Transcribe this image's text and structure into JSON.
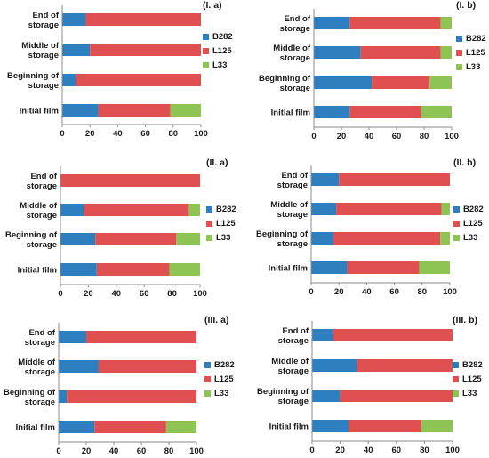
{
  "colors": {
    "B282": "#2E7FBF",
    "L125": "#E05050",
    "L33": "#8DC454",
    "axis": "#8a8a8a",
    "text": "#1a1a1a"
  },
  "chart_data": [
    {
      "type": "bar",
      "orientation": "horizontal",
      "stacked": true,
      "title": "(I. a)",
      "categories": [
        "Initial film",
        "Beginning of storage",
        "Middle of storage",
        "End of storage"
      ],
      "series": [
        {
          "name": "B282",
          "values": [
            26,
            10,
            20,
            17
          ]
        },
        {
          "name": "L125",
          "values": [
            52,
            90,
            80,
            83
          ]
        },
        {
          "name": "L33",
          "values": [
            22,
            0,
            0,
            0
          ]
        }
      ],
      "xlim": [
        0,
        100
      ],
      "xticks": [
        0,
        20,
        40,
        60,
        80,
        100
      ],
      "legend": "right"
    },
    {
      "type": "bar",
      "orientation": "horizontal",
      "stacked": true,
      "title": "(I. b)",
      "categories": [
        "Initial film",
        "Beginning of storage",
        "Middle of storage",
        "End of storage"
      ],
      "series": [
        {
          "name": "B282",
          "values": [
            26,
            42,
            34,
            26
          ]
        },
        {
          "name": "L125",
          "values": [
            52,
            42,
            58,
            66
          ]
        },
        {
          "name": "L33",
          "values": [
            22,
            16,
            8,
            8
          ]
        }
      ],
      "xlim": [
        0,
        100
      ],
      "xticks": [
        0,
        20,
        40,
        60,
        80,
        100
      ],
      "legend": "right"
    },
    {
      "type": "bar",
      "orientation": "horizontal",
      "stacked": true,
      "title": "(II. a)",
      "categories": [
        "Initial film",
        "Beginning of storage",
        "Middle of storage",
        "End of storage"
      ],
      "series": [
        {
          "name": "B282",
          "values": [
            26,
            25,
            17,
            0
          ]
        },
        {
          "name": "L125",
          "values": [
            52,
            58,
            75,
            100
          ]
        },
        {
          "name": "L33",
          "values": [
            22,
            17,
            8,
            0
          ]
        }
      ],
      "xlim": [
        0,
        100
      ],
      "xticks": [
        0,
        20,
        40,
        60,
        80,
        100
      ],
      "legend": "right"
    },
    {
      "type": "bar",
      "orientation": "horizontal",
      "stacked": true,
      "title": "(II. b)",
      "categories": [
        "Initial film",
        "Beginning of storage",
        "Middle of storage",
        "End of storage"
      ],
      "series": [
        {
          "name": "B282",
          "values": [
            26,
            16,
            18,
            20
          ]
        },
        {
          "name": "L125",
          "values": [
            52,
            77,
            76,
            80
          ]
        },
        {
          "name": "L33",
          "values": [
            22,
            7,
            6,
            0
          ]
        }
      ],
      "xlim": [
        0,
        100
      ],
      "xticks": [
        0,
        20,
        40,
        60,
        80,
        100
      ],
      "legend": "right"
    },
    {
      "type": "bar",
      "orientation": "horizontal",
      "stacked": true,
      "title": "(III. a)",
      "categories": [
        "Initial film",
        "Beginning of storage",
        "Middle of storage",
        "End of storage"
      ],
      "series": [
        {
          "name": "B282",
          "values": [
            26,
            6,
            29,
            20
          ]
        },
        {
          "name": "L125",
          "values": [
            52,
            94,
            71,
            80
          ]
        },
        {
          "name": "L33",
          "values": [
            22,
            0,
            0,
            0
          ]
        }
      ],
      "xlim": [
        0,
        100
      ],
      "xticks": [
        0,
        20,
        40,
        60,
        80,
        100
      ],
      "legend": "right"
    },
    {
      "type": "bar",
      "orientation": "horizontal",
      "stacked": true,
      "title": "(III. b)",
      "categories": [
        "Initial film",
        "Beginning of storage",
        "Middle of storage",
        "End of storage"
      ],
      "series": [
        {
          "name": "B282",
          "values": [
            26,
            20,
            32,
            15
          ]
        },
        {
          "name": "L125",
          "values": [
            52,
            80,
            68,
            85
          ]
        },
        {
          "name": "L33",
          "values": [
            22,
            0,
            0,
            0
          ]
        }
      ],
      "xlim": [
        0,
        100
      ],
      "xticks": [
        0,
        20,
        40,
        60,
        80,
        100
      ],
      "legend": "right"
    }
  ]
}
